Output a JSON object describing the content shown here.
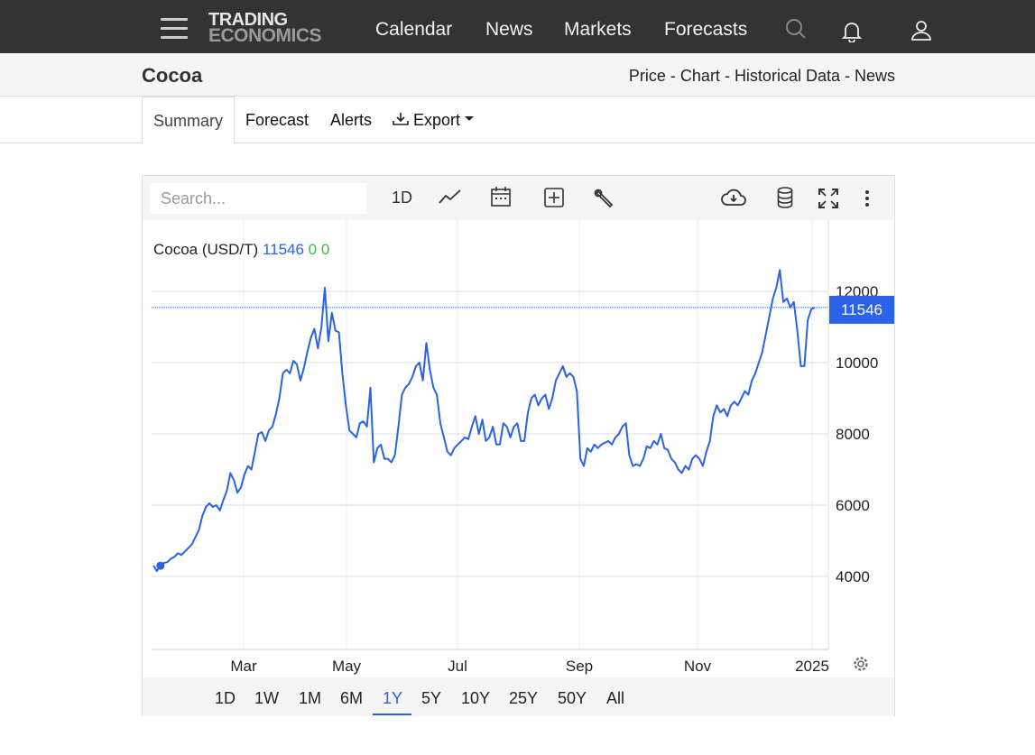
{
  "nav": {
    "logo_line1": "TRADING",
    "logo_line2": "ECONOMICS",
    "links": [
      "Calendar",
      "News",
      "Markets",
      "Forecasts"
    ]
  },
  "header": {
    "title": "Cocoa",
    "links": [
      "Price",
      "Chart",
      "Historical Data",
      "News"
    ],
    "separator": " - "
  },
  "tabs": {
    "summary": "Summary",
    "forecast": "Forecast",
    "alerts": "Alerts",
    "export": "Export"
  },
  "toolbar": {
    "search_placeholder": "Search...",
    "interval": "1D"
  },
  "legend": {
    "name": "Cocoa (USD/T)",
    "value": "11546",
    "change": "0 0"
  },
  "ranges": {
    "items": [
      "1D",
      "1W",
      "1M",
      "6M",
      "1Y",
      "5Y",
      "10Y",
      "25Y",
      "50Y",
      "All"
    ],
    "active": "1Y"
  },
  "colors": {
    "line": "#2a62e8",
    "nav_bg": "#333333",
    "change_up": "#2ec82e"
  },
  "chart_data": {
    "type": "line",
    "title": "Cocoa (USD/T)",
    "x_tick_labels": [
      "Mar",
      "May",
      "Jul",
      "Sep",
      "Nov",
      "2025"
    ],
    "y_tick_labels": [
      "4000",
      "6000",
      "8000",
      "10000",
      "12000"
    ],
    "ylim": [
      2000,
      13500
    ],
    "grid": true,
    "last_value": 11546,
    "series": [
      {
        "values": [
          4300,
          4150,
          4300,
          4380,
          4400,
          4500,
          4550,
          4650,
          4600,
          4700,
          4800,
          4900,
          5100,
          5300,
          5700,
          5950,
          6050,
          5950,
          6000,
          5850,
          6150,
          6400,
          6900,
          6700,
          6350,
          6500,
          6850,
          7100,
          7000,
          7500,
          8000,
          8050,
          7800,
          8100,
          8200,
          8550,
          9000,
          9700,
          9800,
          9700,
          10050,
          9950,
          9500,
          9850,
          10300,
          10700,
          10950,
          10400,
          11000,
          12100,
          10600,
          11400,
          10900,
          10850,
          9700,
          8800,
          8100,
          8000,
          7900,
          8300,
          8350,
          8200,
          9300,
          7200,
          7600,
          7700,
          7300,
          7300,
          7200,
          7400,
          8200,
          9100,
          9300,
          9400,
          9600,
          9900,
          10000,
          9500,
          10550,
          9800,
          9300,
          9100,
          8300,
          7900,
          7500,
          7400,
          7600,
          7700,
          7800,
          7900,
          7850,
          8200,
          8500,
          8000,
          8400,
          7800,
          7900,
          8200,
          7700,
          7700,
          8300,
          8200,
          7900,
          8200,
          8300,
          7800,
          7800,
          8600,
          9000,
          9100,
          8800,
          9000,
          9100,
          8700,
          9000,
          9500,
          9700,
          9900,
          9600,
          9700,
          9600,
          9200,
          7300,
          7100,
          7600,
          7500,
          7700,
          7600,
          7700,
          7750,
          7800,
          7700,
          7900,
          8000,
          8200,
          8300,
          7400,
          7100,
          7150,
          7100,
          7300,
          7650,
          7600,
          7800,
          7700,
          8000,
          7600,
          7550,
          7300,
          7200,
          7000,
          6900,
          7100,
          7000,
          7300,
          7400,
          7300,
          7100,
          7500,
          7800,
          8500,
          8800,
          8600,
          8700,
          8500,
          8800,
          8900,
          8800,
          9000,
          9200,
          9100,
          9500,
          9700,
          10000,
          10300,
          10800,
          11300,
          11800,
          12100,
          12600,
          11700,
          11800,
          11550,
          11700,
          10900,
          9900,
          9900,
          11200,
          11500,
          11546
        ]
      }
    ]
  }
}
